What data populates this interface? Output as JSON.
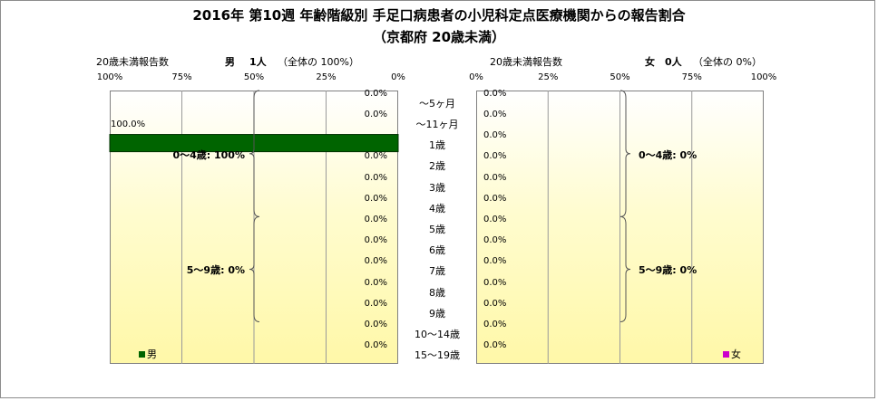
{
  "title_line1": "2016年 第10週 年齢階級別 手足口病患者の小児科定点医療機関からの報告割合",
  "title_line2": "（京都府 20歳未満）",
  "left_header": {
    "caption": "20歳未満報告数",
    "sex": "男",
    "count_text": "1人",
    "share_text": "（全体の 100%）"
  },
  "right_header": {
    "caption": "20歳未満報告数",
    "sex": "女",
    "count_text": "0人",
    "share_text": "（全体の 0%）"
  },
  "chart_data": {
    "type": "bar",
    "orientation": "horizontal",
    "categories": [
      "～5ヶ月",
      "～11ヶ月",
      "1歳",
      "2歳",
      "3歳",
      "4歳",
      "5歳",
      "6歳",
      "7歳",
      "8歳",
      "9歳",
      "10～14歳",
      "15～19歳"
    ],
    "xlim": [
      0,
      100
    ],
    "x_ticks": [
      "0%",
      "25%",
      "50%",
      "75%",
      "100%"
    ],
    "grid": true,
    "series": [
      {
        "name": "男",
        "values": [
          0,
          0,
          100,
          0,
          0,
          0,
          0,
          0,
          0,
          0,
          0,
          0,
          0
        ],
        "color": "#006400"
      },
      {
        "name": "女",
        "values": [
          0,
          0,
          0,
          0,
          0,
          0,
          0,
          0,
          0,
          0,
          0,
          0,
          0
        ],
        "color": "#cc00cc"
      }
    ],
    "value_label_suffix": "%",
    "left_groups": [
      {
        "label": "0～4歳: 100%",
        "from": 0,
        "to": 5
      },
      {
        "label": "5～9歳: 0%",
        "from": 6,
        "to": 10
      }
    ],
    "right_groups": [
      {
        "label": "0～4歳: 0%",
        "from": 0,
        "to": 5
      },
      {
        "label": "5～9歳: 0%",
        "from": 6,
        "to": 10
      }
    ]
  }
}
